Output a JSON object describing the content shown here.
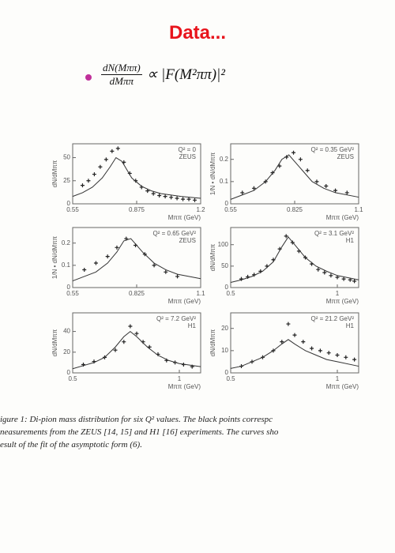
{
  "title": "Data...",
  "formula": {
    "numerator": "dN(Mππ)",
    "denominator": "dMππ",
    "rest": "∝ |F(M²ππ)|²"
  },
  "caption": [
    "igure 1: Di-pion mass distribution for six Q² values.  The black points correspc",
    "neasurements from the ZEUS [14, 15] and H1 [16] experiments.  The curves sho",
    "esult of the fit of the asymptotic form (6)."
  ],
  "chart_data": [
    {
      "type": "scatter",
      "color": "#222",
      "annotations": [
        "Q² = 0",
        "ZEUS"
      ],
      "x_label": "Mππ (GeV)",
      "y_label": "dN/dMππ",
      "xlim": [
        0.55,
        1.2
      ],
      "xticks": [
        0.55,
        0.875,
        1.2
      ],
      "ylim": [
        0,
        65
      ],
      "yticks": [
        0,
        25,
        50
      ],
      "x": [
        0.6,
        0.63,
        0.66,
        0.69,
        0.72,
        0.75,
        0.78,
        0.81,
        0.84,
        0.87,
        0.9,
        0.93,
        0.96,
        0.99,
        1.02,
        1.05,
        1.08,
        1.11,
        1.14,
        1.17
      ],
      "values": [
        20,
        25,
        32,
        40,
        48,
        57,
        60,
        45,
        33,
        25,
        18,
        14,
        11,
        9,
        8,
        7,
        6,
        5,
        5,
        4
      ],
      "curve_x": [
        0.55,
        0.6,
        0.65,
        0.7,
        0.74,
        0.77,
        0.8,
        0.85,
        0.9,
        0.95,
        1.0,
        1.1,
        1.2
      ],
      "curve": [
        8,
        12,
        18,
        28,
        40,
        50,
        46,
        28,
        19,
        14,
        11,
        8,
        6
      ]
    },
    {
      "type": "scatter",
      "color": "#222",
      "annotations": [
        "Q² = 0.35 GeV²",
        "ZEUS"
      ],
      "x_label": "Mππ (GeV)",
      "y_label": "1/N • dN/dMππ",
      "xlim": [
        0.55,
        1.1
      ],
      "xticks": [
        0.55,
        0.825,
        1.1
      ],
      "ylim": [
        0,
        0.27
      ],
      "yticks": [
        0,
        0.1,
        0.2
      ],
      "x": [
        0.6,
        0.65,
        0.7,
        0.73,
        0.76,
        0.79,
        0.82,
        0.85,
        0.88,
        0.92,
        0.96,
        1.0,
        1.05
      ],
      "values": [
        0.05,
        0.07,
        0.1,
        0.14,
        0.17,
        0.21,
        0.23,
        0.2,
        0.15,
        0.1,
        0.08,
        0.06,
        0.05
      ],
      "curve_x": [
        0.55,
        0.6,
        0.65,
        0.7,
        0.74,
        0.77,
        0.8,
        0.85,
        0.9,
        0.95,
        1.0,
        1.1
      ],
      "curve": [
        0.02,
        0.04,
        0.06,
        0.1,
        0.15,
        0.2,
        0.22,
        0.16,
        0.1,
        0.07,
        0.05,
        0.03
      ]
    },
    {
      "type": "scatter",
      "color": "#222",
      "annotations": [
        "Q² = 0.65 GeV²",
        "ZEUS"
      ],
      "x_label": "Mππ (GeV)",
      "y_label": "1/N • dN/dMππ",
      "xlim": [
        0.55,
        1.1
      ],
      "xticks": [
        0.55,
        0.825,
        1.1
      ],
      "ylim": [
        0,
        0.27
      ],
      "yticks": [
        0,
        0.1,
        0.2
      ],
      "x": [
        0.6,
        0.65,
        0.7,
        0.74,
        0.78,
        0.82,
        0.86,
        0.9,
        0.95,
        1.0
      ],
      "values": [
        0.08,
        0.11,
        0.14,
        0.18,
        0.22,
        0.19,
        0.15,
        0.1,
        0.07,
        0.05
      ],
      "curve_x": [
        0.55,
        0.6,
        0.65,
        0.7,
        0.74,
        0.77,
        0.8,
        0.85,
        0.9,
        0.95,
        1.0,
        1.1
      ],
      "curve": [
        0.03,
        0.05,
        0.07,
        0.11,
        0.16,
        0.21,
        0.22,
        0.16,
        0.11,
        0.08,
        0.06,
        0.04
      ]
    },
    {
      "type": "scatter",
      "color": "#222",
      "annotations": [
        "Q² = 3.1 GeV²",
        "H1"
      ],
      "x_label": "Mππ (GeV)",
      "y_label": "dN/dMππ",
      "xlim": [
        0.5,
        1.1
      ],
      "xticks": [
        0.5,
        1
      ],
      "ylim": [
        0,
        140
      ],
      "yticks": [
        0,
        50,
        100
      ],
      "x": [
        0.55,
        0.58,
        0.61,
        0.64,
        0.67,
        0.7,
        0.73,
        0.76,
        0.79,
        0.82,
        0.85,
        0.88,
        0.91,
        0.94,
        0.97,
        1.0,
        1.03,
        1.06,
        1.08
      ],
      "values": [
        20,
        25,
        30,
        38,
        50,
        65,
        90,
        120,
        105,
        85,
        70,
        55,
        42,
        35,
        28,
        24,
        20,
        18,
        15
      ],
      "curve_x": [
        0.5,
        0.55,
        0.6,
        0.65,
        0.7,
        0.74,
        0.77,
        0.8,
        0.85,
        0.9,
        0.95,
        1.0,
        1.1
      ],
      "curve": [
        12,
        18,
        26,
        38,
        60,
        95,
        118,
        100,
        70,
        50,
        38,
        28,
        18
      ]
    },
    {
      "type": "scatter",
      "color": "#222",
      "annotations": [
        "Q² = 7.2 GeV²",
        "H1"
      ],
      "x_label": "Mππ (GeV)",
      "y_label": "dN/dMππ",
      "xlim": [
        0.5,
        1.1
      ],
      "xticks": [
        0.5,
        1
      ],
      "ylim": [
        0,
        58
      ],
      "yticks": [
        0,
        20,
        40
      ],
      "x": [
        0.55,
        0.6,
        0.65,
        0.7,
        0.74,
        0.77,
        0.8,
        0.83,
        0.86,
        0.9,
        0.94,
        0.98,
        1.02,
        1.06
      ],
      "values": [
        8,
        11,
        15,
        22,
        30,
        45,
        38,
        30,
        25,
        18,
        12,
        10,
        8,
        6
      ],
      "curve_x": [
        0.5,
        0.55,
        0.6,
        0.65,
        0.7,
        0.74,
        0.77,
        0.8,
        0.85,
        0.9,
        0.95,
        1.0,
        1.1
      ],
      "curve": [
        4,
        7,
        10,
        15,
        25,
        35,
        40,
        35,
        25,
        17,
        12,
        9,
        6
      ]
    },
    {
      "type": "scatter",
      "color": "#222",
      "annotations": [
        "Q² = 21.2 GeV²",
        "H1"
      ],
      "x_label": "Mππ (GeV)",
      "y_label": "dN/dMππ",
      "xlim": [
        0.5,
        1.1
      ],
      "xticks": [
        0.5,
        1
      ],
      "ylim": [
        0,
        27
      ],
      "yticks": [
        0,
        10,
        20
      ],
      "x": [
        0.55,
        0.6,
        0.65,
        0.7,
        0.74,
        0.77,
        0.8,
        0.84,
        0.88,
        0.92,
        0.96,
        1.0,
        1.04,
        1.08
      ],
      "values": [
        3,
        5,
        7,
        10,
        14,
        22,
        17,
        14,
        11,
        10,
        9,
        8,
        7,
        6
      ],
      "curve_x": [
        0.5,
        0.55,
        0.6,
        0.65,
        0.7,
        0.74,
        0.77,
        0.8,
        0.85,
        0.9,
        0.95,
        1.0,
        1.1
      ],
      "curve": [
        2,
        3,
        5,
        7,
        10,
        13,
        15,
        13,
        10,
        8,
        6,
        5,
        3
      ]
    }
  ]
}
